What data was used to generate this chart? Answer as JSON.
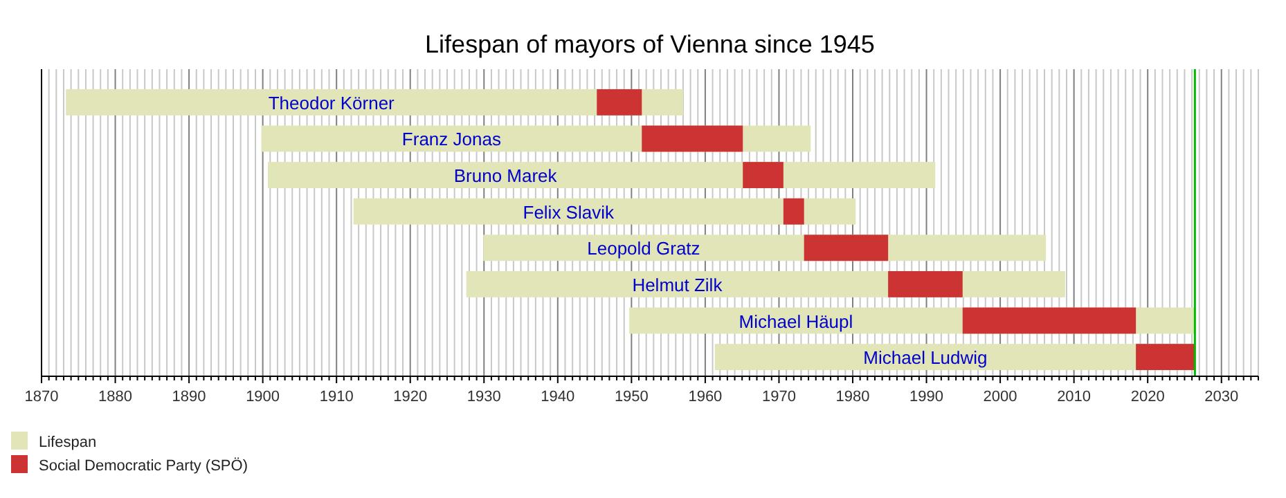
{
  "chart_data": {
    "type": "bar",
    "orientation": "horizontal",
    "title": "Lifespan of mayors of Vienna since 1945",
    "categories": [
      "Theodor Körner",
      "Franz Jonas",
      "Bruno Marek",
      "Felix Slavik",
      "Leopold Gratz",
      "Helmut Zilk",
      "Michael Häupl",
      "Michael Ludwig"
    ],
    "series": [
      {
        "name": "Lifespan",
        "color": "#e1e5b8",
        "base": [
          1873.3,
          1899.8,
          1900.7,
          1912.3,
          1929.9,
          1927.6,
          1949.7,
          1961.3
        ],
        "values": [
          83.7,
          74.5,
          90.5,
          68.1,
          76.3,
          81.2,
          76.7,
          65.1
        ]
      },
      {
        "name": "Social Democratic Party (SPÖ)",
        "color": "#cc3333",
        "base": [
          1945.3,
          1951.4,
          1965.1,
          1970.6,
          1973.4,
          1984.8,
          1994.9,
          2018.4
        ],
        "values": [
          6.1,
          13.7,
          5.5,
          2.8,
          11.4,
          10.1,
          23.5,
          8.0
        ]
      }
    ],
    "xlim": [
      1870,
      2035
    ],
    "xticks": [
      1870,
      {
        "value": 1871,
        "label": null
      },
      {
        "value": 1872,
        "label": null
      },
      {
        "value": 1873,
        "label": null
      },
      {
        "value": 1874,
        "label": null
      },
      {
        "value": 1875,
        "label": null
      },
      {
        "value": 1876,
        "label": null
      },
      {
        "value": 1877,
        "label": null
      },
      {
        "value": 1878,
        "label": null
      },
      {
        "value": 1879,
        "label": null
      },
      1880,
      {
        "value": 1881,
        "label": null
      },
      {
        "value": 1882,
        "label": null
      },
      {
        "value": 1883,
        "label": null
      },
      {
        "value": 1884,
        "label": null
      },
      {
        "value": 1885,
        "label": null
      },
      {
        "value": 1886,
        "label": null
      },
      {
        "value": 1887,
        "label": null
      },
      {
        "value": 1888,
        "label": null
      },
      {
        "value": 1889,
        "label": null
      },
      1890,
      {
        "value": 1891,
        "label": null
      },
      {
        "value": 1892,
        "label": null
      },
      {
        "value": 1893,
        "label": null
      },
      {
        "value": 1894,
        "label": null
      },
      {
        "value": 1895,
        "label": null
      },
      {
        "value": 1896,
        "label": null
      },
      {
        "value": 1897,
        "label": null
      },
      {
        "value": 1898,
        "label": null
      },
      {
        "value": 1899,
        "label": null
      },
      1900,
      {
        "value": 1901,
        "label": null
      },
      {
        "value": 1902,
        "label": null
      },
      {
        "value": 1903,
        "label": null
      },
      {
        "value": 1904,
        "label": null
      },
      {
        "value": 1905,
        "label": null
      },
      {
        "value": 1906,
        "label": null
      },
      {
        "value": 1907,
        "label": null
      },
      {
        "value": 1908,
        "label": null
      },
      {
        "value": 1909,
        "label": null
      },
      1910,
      {
        "value": 1911,
        "label": null
      },
      {
        "value": 1912,
        "label": null
      },
      {
        "value": 1913,
        "label": null
      },
      {
        "value": 1914,
        "label": null
      },
      {
        "value": 1915,
        "label": null
      },
      {
        "value": 1916,
        "label": null
      },
      {
        "value": 1917,
        "label": null
      },
      {
        "value": 1918,
        "label": null
      },
      {
        "value": 1919,
        "label": null
      },
      1920,
      {
        "value": 1921,
        "label": null
      },
      {
        "value": 1922,
        "label": null
      },
      {
        "value": 1923,
        "label": null
      },
      {
        "value": 1924,
        "label": null
      },
      {
        "value": 1925,
        "label": null
      },
      {
        "value": 1926,
        "label": null
      },
      {
        "value": 1927,
        "label": null
      },
      {
        "value": 1928,
        "label": null
      },
      {
        "value": 1929,
        "label": null
      },
      1930,
      {
        "value": 1931,
        "label": null
      },
      {
        "value": 1932,
        "label": null
      },
      {
        "value": 1933,
        "label": null
      },
      {
        "value": 1934,
        "label": null
      },
      {
        "value": 1935,
        "label": null
      },
      {
        "value": 1936,
        "label": null
      },
      {
        "value": 1937,
        "label": null
      },
      {
        "value": 1938,
        "label": null
      },
      {
        "value": 1939,
        "label": null
      },
      1940,
      {
        "value": 1941,
        "label": null
      },
      {
        "value": 1942,
        "label": null
      },
      {
        "value": 1943,
        "label": null
      },
      {
        "value": 1944,
        "label": null
      },
      {
        "value": 1945,
        "label": null
      },
      {
        "value": 1946,
        "label": null
      },
      {
        "value": 1947,
        "label": null
      },
      {
        "value": 1948,
        "label": null
      },
      {
        "value": 1949,
        "label": null
      },
      1950,
      {
        "value": 1951,
        "label": null
      },
      {
        "value": 1952,
        "label": null
      },
      {
        "value": 1953,
        "label": null
      },
      {
        "value": 1954,
        "label": null
      },
      {
        "value": 1955,
        "label": null
      },
      {
        "value": 1956,
        "label": null
      },
      {
        "value": 1957,
        "label": null
      },
      {
        "value": 1958,
        "label": null
      },
      {
        "value": 1959,
        "label": null
      },
      1960,
      {
        "value": 1961,
        "label": null
      },
      {
        "value": 1962,
        "label": null
      },
      {
        "value": 1963,
        "label": null
      },
      {
        "value": 1964,
        "label": null
      },
      {
        "value": 1965,
        "label": null
      },
      {
        "value": 1966,
        "label": null
      },
      {
        "value": 1967,
        "label": null
      },
      {
        "value": 1968,
        "label": null
      },
      {
        "value": 1969,
        "label": null
      },
      1970,
      {
        "value": 1971,
        "label": null
      },
      {
        "value": 1972,
        "label": null
      },
      {
        "value": 1973,
        "label": null
      },
      {
        "value": 1974,
        "label": null
      },
      {
        "value": 1975,
        "label": null
      },
      {
        "value": 1976,
        "label": null
      },
      {
        "value": 1977,
        "label": null
      },
      {
        "value": 1978,
        "label": null
      },
      {
        "value": 1979,
        "label": null
      },
      1980,
      {
        "value": 1981,
        "label": null
      },
      {
        "value": 1982,
        "label": null
      },
      {
        "value": 1983,
        "label": null
      },
      {
        "value": 1984,
        "label": null
      },
      {
        "value": 1985,
        "label": null
      },
      {
        "value": 1986,
        "label": null
      },
      {
        "value": 1987,
        "label": null
      },
      {
        "value": 1988,
        "label": null
      },
      {
        "value": 1989,
        "label": null
      },
      1990,
      {
        "value": 1991,
        "label": null
      },
      {
        "value": 1992,
        "label": null
      },
      {
        "value": 1993,
        "label": null
      },
      {
        "value": 1994,
        "label": null
      },
      {
        "value": 1995,
        "label": null
      },
      {
        "value": 1996,
        "label": null
      },
      {
        "value": 1997,
        "label": null
      },
      {
        "value": 1998,
        "label": null
      },
      {
        "value": 1999,
        "label": null
      },
      2000,
      {
        "value": 2001,
        "label": null
      },
      {
        "value": 2002,
        "label": null
      },
      {
        "value": 2003,
        "label": null
      },
      {
        "value": 2004,
        "label": null
      },
      {
        "value": 2005,
        "label": null
      },
      {
        "value": 2006,
        "label": null
      },
      {
        "value": 2007,
        "label": null
      },
      {
        "value": 2008,
        "label": null
      },
      {
        "value": 2009,
        "label": null
      },
      2010,
      {
        "value": 2011,
        "label": null
      },
      {
        "value": 2012,
        "label": null
      },
      {
        "value": 2013,
        "label": null
      },
      {
        "value": 2014,
        "label": null
      },
      {
        "value": 2015,
        "label": null
      },
      {
        "value": 2016,
        "label": null
      },
      {
        "value": 2017,
        "label": null
      },
      {
        "value": 2018,
        "label": null
      },
      {
        "value": 2019,
        "label": null
      },
      2020,
      {
        "value": 2021,
        "label": null
      },
      {
        "value": 2022,
        "label": null
      },
      {
        "value": 2023,
        "label": null
      },
      {
        "value": 2024,
        "label": null
      },
      {
        "value": 2025,
        "label": null
      },
      {
        "value": 2026,
        "label": null
      },
      {
        "value": 2027,
        "label": null
      },
      {
        "value": 2028,
        "label": null
      },
      {
        "value": 2029,
        "label": null
      },
      2030,
      {
        "value": 2031,
        "label": null
      },
      {
        "value": 2032,
        "label": null
      },
      {
        "value": 2033,
        "label": null
      },
      {
        "value": 2034,
        "label": null
      },
      {
        "value": 2035,
        "label": null
      }
    ],
    "grid": "x",
    "legend": "bottom left",
    "ref_lines": [
      {
        "axis": "x",
        "value": 2026.4,
        "color": "#00bb00"
      }
    ]
  }
}
